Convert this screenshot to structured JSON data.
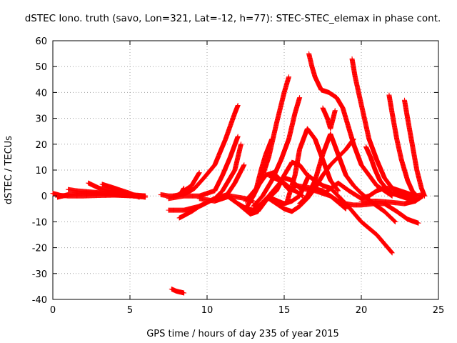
{
  "chart_data": {
    "type": "scatter",
    "title": "dSTEC Iono. truth (savo, Lon=321, Lat=-12, h=77): STEC-STEC_elemax in phase cont.",
    "xlabel": "GPS time / hours of day 235 of year 2015",
    "ylabel": "dSTEC  / TECUs",
    "xlim": [
      0,
      25
    ],
    "ylim": [
      -40,
      60
    ],
    "xticks": [
      0,
      5,
      10,
      15,
      20,
      25
    ],
    "yticks": [
      -40,
      -30,
      -20,
      -10,
      0,
      10,
      20,
      30,
      40,
      50,
      60
    ],
    "grid": true,
    "marker": "+",
    "color": "#ff0000",
    "series": [
      {
        "x": [
          0.0,
          0.5,
          1.0,
          2.0,
          3.0,
          4.0,
          5.0,
          6.0
        ],
        "y": [
          1.0,
          0.2,
          0.0,
          0.0,
          0.2,
          0.3,
          0.1,
          0.0
        ]
      },
      {
        "x": [
          0.3,
          1.0,
          2.0,
          3.0,
          4.0,
          5.0,
          5.8
        ],
        "y": [
          -0.5,
          0.5,
          1.2,
          1.0,
          0.5,
          0.2,
          0.0
        ]
      },
      {
        "x": [
          1.0,
          1.5,
          2.5,
          3.5,
          4.5,
          5.3
        ],
        "y": [
          2.5,
          2.0,
          1.5,
          1.0,
          0.3,
          0.0
        ]
      },
      {
        "x": [
          2.3,
          3.0,
          4.0,
          5.0,
          6.0
        ],
        "y": [
          5.0,
          3.0,
          1.5,
          0.5,
          0.0
        ]
      },
      {
        "x": [
          3.2,
          4.0,
          5.0,
          5.6
        ],
        "y": [
          4.5,
          3.0,
          1.0,
          -0.5
        ]
      },
      {
        "x": [
          3.8,
          4.5,
          5.2,
          6.0
        ],
        "y": [
          3.0,
          1.5,
          0.0,
          -0.5
        ]
      },
      {
        "x": [
          7.0,
          7.5,
          8.0,
          8.3,
          8.5
        ],
        "y": [
          0.5,
          0.0,
          0.0,
          1.0,
          3.0
        ]
      },
      {
        "x": [
          7.8,
          8.3,
          8.8,
          9.2,
          9.5,
          9.8,
          10.5,
          11.2,
          11.8,
          12.0
        ],
        "y": [
          0.0,
          0.5,
          1.5,
          3.0,
          5.0,
          7.0,
          12.0,
          22.0,
          32.0,
          35.0
        ]
      },
      {
        "x": [
          7.5,
          8.5,
          9.5,
          10.5,
          11.0,
          11.5,
          12.0
        ],
        "y": [
          -1.0,
          0.0,
          0.0,
          2.0,
          8.0,
          15.0,
          23.0
        ]
      },
      {
        "x": [
          7.5,
          8.5,
          9.5,
          10.5,
          11.0,
          11.8,
          12.2
        ],
        "y": [
          -5.5,
          -5.5,
          -4.0,
          -1.0,
          2.0,
          10.0,
          20.0
        ]
      },
      {
        "x": [
          8.2,
          9.0,
          9.5,
          10.5,
          11.3,
          11.8,
          12.4
        ],
        "y": [
          -8.5,
          -6.0,
          -4.0,
          -1.0,
          0.5,
          5.0,
          12.0
        ]
      },
      {
        "x": [
          8.5,
          9.0,
          9.2,
          9.4,
          9.5
        ],
        "y": [
          2.0,
          4.0,
          6.0,
          8.0,
          9.0
        ]
      },
      {
        "x": [
          7.7,
          8.0,
          8.5
        ],
        "y": [
          -36.0,
          -36.8,
          -37.5
        ]
      },
      {
        "x": [
          9.5,
          10.5,
          11.0,
          11.5,
          12.0,
          12.5,
          13.0
        ],
        "y": [
          -1.0,
          -2.0,
          -1.0,
          0.0,
          -0.5,
          -1.0,
          -2.0
        ]
      },
      {
        "x": [
          11.3,
          12.0,
          12.6,
          13.0,
          13.5,
          14.0,
          15.0,
          15.5,
          16.0,
          17.0,
          18.0,
          19.0
        ],
        "y": [
          0.0,
          -3.0,
          -5.0,
          -5.5,
          -3.0,
          0.0,
          7.0,
          6.0,
          3.0,
          2.0,
          0.0,
          -5.0
        ]
      },
      {
        "x": [
          12.0,
          12.8,
          13.3,
          13.8,
          14.5,
          15.0,
          15.5,
          16.0,
          16.5,
          17.5,
          18.0,
          19.0,
          20.0,
          21.0,
          22.0
        ],
        "y": [
          -3.0,
          -7.0,
          -6.0,
          -2.0,
          2.0,
          8.0,
          13.0,
          12.0,
          8.0,
          4.0,
          3.0,
          -3.0,
          -10.0,
          -15.0,
          -22.0
        ]
      },
      {
        "x": [
          12.5,
          13.0,
          13.5,
          14.0,
          14.5,
          15.0,
          15.3
        ],
        "y": [
          -5.0,
          0.0,
          6.0,
          15.0,
          28.0,
          40.0,
          46.0
        ]
      },
      {
        "x": [
          12.8,
          13.2,
          13.5,
          13.8,
          14.2
        ],
        "y": [
          -2.0,
          3.0,
          10.0,
          16.0,
          22.0
        ]
      },
      {
        "x": [
          13.0,
          13.6,
          14.2,
          14.8,
          15.3,
          15.7,
          16.0
        ],
        "y": [
          -4.0,
          0.0,
          6.0,
          14.0,
          22.0,
          32.0,
          38.0
        ]
      },
      {
        "x": [
          12.5,
          13.2,
          13.8,
          14.3,
          14.8,
          15.2,
          15.7,
          16.2
        ],
        "y": [
          -2.0,
          3.0,
          8.0,
          9.0,
          6.0,
          3.0,
          2.0,
          0.0
        ]
      },
      {
        "x": [
          14.0,
          14.5,
          15.0,
          15.4,
          15.8,
          16.3,
          16.8,
          17.5,
          18.0,
          18.5,
          19.0,
          19.5,
          20.0,
          20.8,
          21.5,
          22.3,
          23.0,
          23.7
        ],
        "y": [
          8.0,
          6.5,
          5.0,
          3.0,
          4.0,
          3.5,
          3.0,
          2.0,
          0.0,
          -2.0,
          -3.0,
          -3.5,
          -3.5,
          -3.0,
          -3.0,
          -6.0,
          -9.0,
          -10.5
        ]
      },
      {
        "x": [
          14.2,
          14.6,
          15.0,
          15.5,
          16.0,
          16.6
        ],
        "y": [
          -1.0,
          -2.0,
          -3.0,
          -2.0,
          0.0,
          8.0
        ]
      },
      {
        "x": [
          14.0,
          14.5,
          15.0,
          15.5,
          16.0,
          16.5,
          17.0,
          17.5,
          18.0,
          18.5,
          19.0,
          19.5
        ],
        "y": [
          -1.0,
          -3.0,
          -5.0,
          -6.0,
          -4.0,
          -1.0,
          3.0,
          8.0,
          12.0,
          15.0,
          18.0,
          22.0
        ]
      },
      {
        "x": [
          15.2,
          15.7,
          16.0,
          16.5,
          17.0,
          17.5,
          18.0,
          18.5
        ],
        "y": [
          -2.0,
          8.0,
          18.0,
          26.0,
          22.0,
          14.0,
          6.0,
          2.0
        ]
      },
      {
        "x": [
          16.0,
          16.5,
          17.0,
          17.5,
          18.0,
          18.5,
          19.0,
          19.5,
          20.0,
          20.8,
          21.5,
          22.2
        ],
        "y": [
          -3.0,
          0.0,
          6.0,
          16.0,
          24.0,
          16.0,
          8.0,
          4.0,
          1.0,
          -3.0,
          -6.0,
          -10.0
        ]
      },
      {
        "x": [
          16.6,
          16.8,
          17.0,
          17.4,
          17.9,
          18.4,
          18.8,
          19.1,
          19.5,
          20.0,
          21.0,
          22.0
        ],
        "y": [
          55.0,
          50.0,
          46.0,
          41.0,
          40.0,
          38.0,
          34.0,
          28.0,
          20.0,
          12.0,
          4.0,
          0.0
        ]
      },
      {
        "x": [
          17.5,
          17.8,
          18.0,
          18.3
        ],
        "y": [
          34.0,
          30.0,
          26.0,
          33.0
        ]
      },
      {
        "x": [
          17.8,
          18.5,
          19.2,
          20.0,
          20.5,
          21.0,
          21.5,
          22.0,
          22.5,
          23.0,
          23.5,
          24.0
        ],
        "y": [
          2.0,
          5.0,
          2.0,
          -1.0,
          0.0,
          2.0,
          3.0,
          3.0,
          2.0,
          1.0,
          0.0,
          0.5
        ]
      },
      {
        "x": [
          19.4,
          19.6,
          19.9,
          20.2,
          20.5,
          21.0,
          21.5,
          22.0,
          22.5,
          23.0,
          23.5
        ],
        "y": [
          53.0,
          46.0,
          38.0,
          30.0,
          22.0,
          14.0,
          7.0,
          3.0,
          1.0,
          0.0,
          -1.0
        ]
      },
      {
        "x": [
          20.3,
          20.6,
          20.9,
          21.2,
          21.6,
          22.0,
          22.5,
          23.0,
          23.5
        ],
        "y": [
          19.0,
          15.0,
          10.0,
          6.0,
          3.0,
          1.0,
          0.0,
          -1.0,
          -2.0
        ]
      },
      {
        "x": [
          21.8,
          22.0,
          22.3,
          22.6,
          23.0,
          23.3,
          23.6
        ],
        "y": [
          39.0,
          32.0,
          22.0,
          14.0,
          6.0,
          2.0,
          0.0
        ]
      },
      {
        "x": [
          22.8,
          23.0,
          23.3,
          23.6,
          23.9,
          24.1
        ],
        "y": [
          37.0,
          30.0,
          20.0,
          10.0,
          3.0,
          0.0
        ]
      },
      {
        "x": [
          20.0,
          21.0,
          22.0,
          22.8,
          23.5,
          24.0
        ],
        "y": [
          -2.0,
          -2.0,
          -2.5,
          -3.0,
          -2.0,
          0.0
        ]
      }
    ]
  }
}
